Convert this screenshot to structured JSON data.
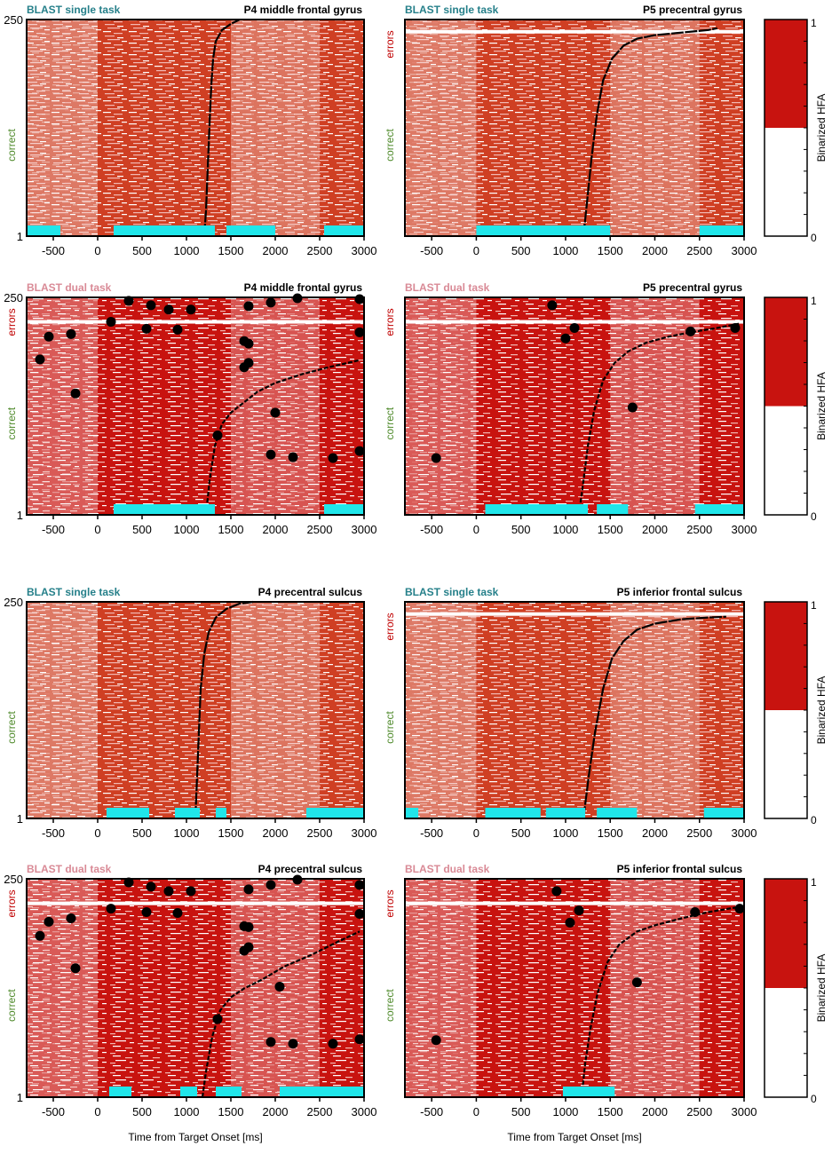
{
  "colors": {
    "active": "#c8130f",
    "single_active": "#cf3f23",
    "pale": "#f2b8b2",
    "stimulus": "#20e6ea",
    "single_task_label": "#26808a",
    "dual_task_label": "#d98a96",
    "errors_label": "#c00000",
    "correct_label": "#4f8a2b",
    "colorbar_top": "#c8130f"
  },
  "chart_data": [
    {
      "type": "heatmap",
      "task": "BLAST single task",
      "site": "P4 middle frontal gyrus",
      "x": [
        -500,
        0,
        500,
        1000,
        1500,
        2000,
        2500,
        3000
      ],
      "xlim": [
        -800,
        3000
      ],
      "y_ticks": [
        "250",
        "1"
      ],
      "y_labels": [
        "errors",
        "correct"
      ],
      "show_errors": false,
      "xlabel": "",
      "stimulus_bars": [
        [
          -800,
          -420
        ],
        [
          180,
          1320
        ],
        [
          1450,
          2000
        ],
        [
          2550,
          3000
        ]
      ],
      "rt_curve": [
        [
          1200,
          1
        ],
        [
          1220,
          30
        ],
        [
          1240,
          80
        ],
        [
          1260,
          130
        ],
        [
          1280,
          175
        ],
        [
          1300,
          205
        ],
        [
          1330,
          225
        ],
        [
          1400,
          238
        ],
        [
          1500,
          245
        ],
        [
          1600,
          250
        ]
      ],
      "error_points": [],
      "colorbar": null
    },
    {
      "type": "heatmap",
      "task": "BLAST single task",
      "site": "P5 precentral gyrus",
      "x": [
        -500,
        0,
        500,
        1000,
        1500,
        2000,
        2500,
        3000
      ],
      "xlim": [
        -800,
        3000
      ],
      "y_ticks": [
        "",
        ""
      ],
      "y_labels": [
        "errors",
        "correct"
      ],
      "show_errors": true,
      "xlabel": "",
      "stimulus_bars": [
        [
          0,
          1500
        ],
        [
          2500,
          3000
        ]
      ],
      "rt_curve": [
        [
          1200,
          1
        ],
        [
          1240,
          40
        ],
        [
          1290,
          90
        ],
        [
          1350,
          140
        ],
        [
          1420,
          180
        ],
        [
          1520,
          205
        ],
        [
          1650,
          220
        ],
        [
          1800,
          228
        ],
        [
          2000,
          232
        ],
        [
          2300,
          235
        ],
        [
          2600,
          238
        ],
        [
          2700,
          240
        ]
      ],
      "error_points": [],
      "colorbar": {
        "label": "Binarized HFA",
        "max": "1",
        "min": "0"
      }
    },
    {
      "type": "heatmap",
      "task": "BLAST dual task",
      "site": "P4 middle frontal gyrus",
      "x": [
        -500,
        0,
        500,
        1000,
        1500,
        2000,
        2500,
        3000
      ],
      "xlim": [
        -800,
        3000
      ],
      "y_ticks": [
        "250",
        "1"
      ],
      "y_labels": [
        "errors",
        "correct"
      ],
      "show_errors": true,
      "xlabel": "",
      "stimulus_bars": [
        [
          180,
          1320
        ],
        [
          2550,
          3000
        ]
      ],
      "rt_curve": [
        [
          1220,
          1
        ],
        [
          1260,
          40
        ],
        [
          1320,
          80
        ],
        [
          1400,
          105
        ],
        [
          1500,
          118
        ],
        [
          1650,
          130
        ],
        [
          1800,
          142
        ],
        [
          2000,
          152
        ],
        [
          2300,
          162
        ],
        [
          2600,
          170
        ],
        [
          2950,
          178
        ]
      ],
      "error_points": [
        [
          -650,
          179
        ],
        [
          -550,
          205
        ],
        [
          -300,
          208
        ],
        [
          -250,
          140
        ],
        [
          150,
          222
        ],
        [
          350,
          246
        ],
        [
          550,
          214
        ],
        [
          600,
          241
        ],
        [
          800,
          236
        ],
        [
          900,
          213
        ],
        [
          1050,
          236
        ],
        [
          1650,
          200
        ],
        [
          1650,
          170
        ],
        [
          1700,
          197
        ],
        [
          1700,
          175
        ],
        [
          1700,
          240
        ],
        [
          1950,
          244
        ],
        [
          2250,
          249
        ],
        [
          2950,
          248
        ],
        [
          2950,
          210
        ],
        [
          2000,
          118
        ],
        [
          1350,
          92
        ],
        [
          1950,
          70
        ],
        [
          2200,
          67
        ],
        [
          2650,
          66
        ],
        [
          2950,
          74
        ]
      ],
      "colorbar": null
    },
    {
      "type": "heatmap",
      "task": "BLAST dual task",
      "site": "P5 precentral gyrus",
      "x": [
        -500,
        0,
        500,
        1000,
        1500,
        2000,
        2500,
        3000
      ],
      "xlim": [
        -800,
        3000
      ],
      "y_ticks": [
        "",
        ""
      ],
      "y_labels": [
        "errors",
        "correct"
      ],
      "show_errors": true,
      "xlabel": "",
      "stimulus_bars": [
        [
          100,
          1250
        ],
        [
          1350,
          1700
        ],
        [
          2450,
          3000
        ]
      ],
      "rt_curve": [
        [
          1150,
          1
        ],
        [
          1200,
          40
        ],
        [
          1250,
          80
        ],
        [
          1320,
          120
        ],
        [
          1420,
          155
        ],
        [
          1550,
          175
        ],
        [
          1700,
          188
        ],
        [
          1900,
          198
        ],
        [
          2150,
          205
        ],
        [
          2400,
          210
        ],
        [
          2700,
          215
        ],
        [
          2950,
          220
        ]
      ],
      "error_points": [
        [
          850,
          241
        ],
        [
          1000,
          203
        ],
        [
          1100,
          215
        ],
        [
          1750,
          124
        ],
        [
          2400,
          211
        ],
        [
          2900,
          215
        ],
        [
          -450,
          66
        ]
      ],
      "colorbar": {
        "label": "Binarized HFA",
        "max": "1",
        "min": "0"
      }
    },
    {
      "type": "heatmap",
      "task": "BLAST single task",
      "site": "P4 precentral sulcus",
      "x": [
        -500,
        0,
        500,
        1000,
        1500,
        2000,
        2500,
        3000
      ],
      "xlim": [
        -800,
        3000
      ],
      "y_ticks": [
        "250",
        "1"
      ],
      "y_labels": [
        "errors",
        "correct"
      ],
      "show_errors": false,
      "xlabel": "",
      "stimulus_bars": [
        [
          100,
          580
        ],
        [
          870,
          1150
        ],
        [
          1330,
          1450
        ],
        [
          2350,
          3000
        ]
      ],
      "rt_curve": [
        [
          1100,
          1
        ],
        [
          1120,
          50
        ],
        [
          1140,
          100
        ],
        [
          1160,
          150
        ],
        [
          1200,
          190
        ],
        [
          1250,
          215
        ],
        [
          1330,
          232
        ],
        [
          1450,
          242
        ],
        [
          1600,
          248
        ],
        [
          1750,
          250
        ]
      ],
      "error_points": [],
      "colorbar": null
    },
    {
      "type": "heatmap",
      "task": "BLAST single task",
      "site": "P5 inferior frontal sulcus",
      "x": [
        -500,
        0,
        500,
        1000,
        1500,
        2000,
        2500,
        3000
      ],
      "xlim": [
        -800,
        3000
      ],
      "y_ticks": [
        "",
        ""
      ],
      "y_labels": [
        "errors",
        "correct"
      ],
      "show_errors": true,
      "xlabel": "",
      "stimulus_bars": [
        [
          -800,
          -650
        ],
        [
          100,
          720
        ],
        [
          780,
          1220
        ],
        [
          1350,
          1800
        ],
        [
          2550,
          3000
        ]
      ],
      "rt_curve": [
        [
          1200,
          1
        ],
        [
          1260,
          50
        ],
        [
          1330,
          100
        ],
        [
          1420,
          150
        ],
        [
          1520,
          185
        ],
        [
          1650,
          205
        ],
        [
          1800,
          218
        ],
        [
          2000,
          225
        ],
        [
          2300,
          230
        ],
        [
          2600,
          232
        ],
        [
          2800,
          233
        ]
      ],
      "error_points": [],
      "colorbar": {
        "label": "Binarized HFA",
        "max": "1",
        "min": "0"
      }
    },
    {
      "type": "heatmap",
      "task": "BLAST dual task",
      "site": "P4 precentral sulcus",
      "x": [
        -500,
        0,
        500,
        1000,
        1500,
        2000,
        2500,
        3000
      ],
      "xlim": [
        -800,
        3000
      ],
      "y_ticks": [
        "250",
        "1"
      ],
      "y_labels": [
        "errors",
        "correct"
      ],
      "show_errors": true,
      "xlabel": "Time from Target Onset [ms]",
      "stimulus_bars": [
        [
          130,
          380
        ],
        [
          930,
          1120
        ],
        [
          1330,
          1620
        ],
        [
          2050,
          3000
        ]
      ],
      "rt_curve": [
        [
          1180,
          1
        ],
        [
          1220,
          30
        ],
        [
          1290,
          70
        ],
        [
          1380,
          100
        ],
        [
          1500,
          115
        ],
        [
          1650,
          125
        ],
        [
          1850,
          135
        ],
        [
          2100,
          150
        ],
        [
          2400,
          163
        ],
        [
          2700,
          178
        ],
        [
          2950,
          190
        ]
      ],
      "error_points": [
        [
          -650,
          185
        ],
        [
          -550,
          201
        ],
        [
          -300,
          205
        ],
        [
          -250,
          148
        ],
        [
          150,
          216
        ],
        [
          350,
          246
        ],
        [
          550,
          212
        ],
        [
          600,
          241
        ],
        [
          800,
          236
        ],
        [
          900,
          211
        ],
        [
          1050,
          236
        ],
        [
          1650,
          168
        ],
        [
          1650,
          196
        ],
        [
          1700,
          172
        ],
        [
          1700,
          195
        ],
        [
          1700,
          238
        ],
        [
          1950,
          243
        ],
        [
          2250,
          249
        ],
        [
          2950,
          243
        ],
        [
          2950,
          210
        ],
        [
          2050,
          127
        ],
        [
          1350,
          90
        ],
        [
          1950,
          64
        ],
        [
          2200,
          62
        ],
        [
          2650,
          62
        ],
        [
          2950,
          67
        ]
      ],
      "colorbar": null
    },
    {
      "type": "heatmap",
      "task": "BLAST dual task",
      "site": "P5 inferior frontal sulcus",
      "x": [
        -500,
        0,
        500,
        1000,
        1500,
        2000,
        2500,
        3000
      ],
      "xlim": [
        -800,
        3000
      ],
      "y_ticks": [
        "",
        ""
      ],
      "y_labels": [
        "errors",
        "correct"
      ],
      "show_errors": true,
      "xlabel": "Time from Target Onset [ms]",
      "stimulus_bars": [
        [
          970,
          1550
        ]
      ],
      "rt_curve": [
        [
          1180,
          1
        ],
        [
          1220,
          40
        ],
        [
          1280,
          80
        ],
        [
          1360,
          120
        ],
        [
          1470,
          155
        ],
        [
          1600,
          175
        ],
        [
          1800,
          190
        ],
        [
          2000,
          197
        ],
        [
          2300,
          205
        ],
        [
          2600,
          212
        ],
        [
          2950,
          218
        ]
      ],
      "error_points": [
        [
          900,
          236
        ],
        [
          1050,
          200
        ],
        [
          1150,
          214
        ],
        [
          1800,
          132
        ],
        [
          2450,
          212
        ],
        [
          2950,
          216
        ],
        [
          -450,
          66
        ]
      ],
      "colorbar": {
        "label": "Binarized HFA",
        "max": "1",
        "min": "0"
      }
    }
  ]
}
